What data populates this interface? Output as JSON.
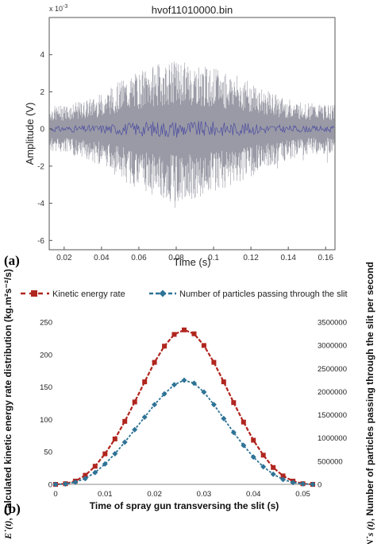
{
  "panel_labels": [
    "(a)",
    "(b)"
  ],
  "chart_data": [
    {
      "type": "line",
      "title": "hvof11010000.bin",
      "xlabel": "Time (s)",
      "ylabel": "Amplitude (V)",
      "y_multiplier": "x 10",
      "y_multiplier_exp": "-3",
      "xlim": [
        0.012,
        0.165
      ],
      "ylim": [
        -6.5,
        6
      ],
      "x_ticks": [
        "0.02",
        "0.04",
        "0.06",
        "0.08",
        "0.1",
        "0.12",
        "0.14",
        "0.16"
      ],
      "y_ticks": [
        "-6",
        "-4",
        "-2",
        "0",
        "2",
        "4"
      ],
      "series": [
        {
          "color": "#9a9aa6",
          "description_values": "envelope",
          "x": [
            0.012,
            0.02,
            0.03,
            0.04,
            0.05,
            0.06,
            0.07,
            0.08,
            0.09,
            0.1,
            0.11,
            0.12,
            0.13,
            0.14,
            0.15,
            0.165
          ],
          "upper": [
            1.2,
            1.3,
            1.5,
            1.9,
            2.6,
            3.1,
            3.5,
            3.7,
            3.5,
            3.3,
            3.0,
            2.5,
            2.0,
            1.6,
            1.4,
            1.3
          ],
          "lower": [
            -1.2,
            -1.3,
            -1.6,
            -2.0,
            -2.7,
            -3.3,
            -3.8,
            -4.0,
            -3.8,
            -3.5,
            -3.0,
            -2.6,
            -2.1,
            -1.7,
            -1.4,
            -1.3
          ]
        },
        {
          "color": "#3a3aa0",
          "x": [
            0.012,
            0.165
          ],
          "values": [
            0,
            0
          ]
        }
      ]
    },
    {
      "type": "line",
      "title": "",
      "xlabel": "Time of spray gun transversing the slit (s)",
      "ylabel_left_symbol": "E˙(t)",
      "ylabel_left": ", Calculated kinetic energy rate distribution (kg.m²s⁻²/s)",
      "ylabel_right_symbol": "N˙s (t)",
      "ylabel_right": ", Number of particles passing through the slit per second",
      "xlim": [
        0,
        0.052
      ],
      "ylim_left": [
        0,
        250
      ],
      "ylim_right": [
        0,
        3500000
      ],
      "x_ticks": [
        "0",
        "0.01",
        "0.02",
        "0.03",
        "0.04",
        "0.05"
      ],
      "y_left_ticks": [
        "0",
        "50",
        "100",
        "150",
        "200",
        "250"
      ],
      "y_right_ticks": [
        "0",
        "500000",
        "1000000",
        "1500000",
        "2000000",
        "2500000",
        "3000000",
        "3500000"
      ],
      "legend_position": "top",
      "series": [
        {
          "name": "Kinetic energy rate",
          "color": "#b0261f",
          "marker": "square",
          "axis": "left",
          "x": [
            0,
            0.002,
            0.004,
            0.006,
            0.008,
            0.01,
            0.012,
            0.014,
            0.016,
            0.018,
            0.02,
            0.022,
            0.024,
            0.026,
            0.028,
            0.03,
            0.032,
            0.034,
            0.036,
            0.038,
            0.04,
            0.042,
            0.044,
            0.046,
            0.048,
            0.05,
            0.052
          ],
          "values": [
            0,
            1,
            5,
            14,
            28,
            47,
            70,
            97,
            127,
            158,
            188,
            213,
            231,
            238,
            232,
            214,
            188,
            158,
            126,
            96,
            68,
            45,
            26,
            13,
            5,
            1,
            0
          ]
        },
        {
          "name": "Number of particles passing through the slit",
          "color": "#2e7396",
          "marker": "diamond",
          "axis": "right",
          "x": [
            0,
            0.002,
            0.004,
            0.006,
            0.008,
            0.01,
            0.012,
            0.014,
            0.016,
            0.018,
            0.02,
            0.022,
            0.024,
            0.026,
            0.028,
            0.03,
            0.032,
            0.034,
            0.036,
            0.038,
            0.04,
            0.042,
            0.044,
            0.046,
            0.048,
            0.05,
            0.052
          ],
          "values": [
            0,
            9000,
            48000,
            125000,
            255000,
            440000,
            660000,
            910000,
            1180000,
            1450000,
            1720000,
            1950000,
            2150000,
            2245000,
            2180000,
            1990000,
            1720000,
            1420000,
            1120000,
            840000,
            590000,
            380000,
            220000,
            105000,
            40000,
            10000,
            0
          ]
        }
      ]
    }
  ]
}
